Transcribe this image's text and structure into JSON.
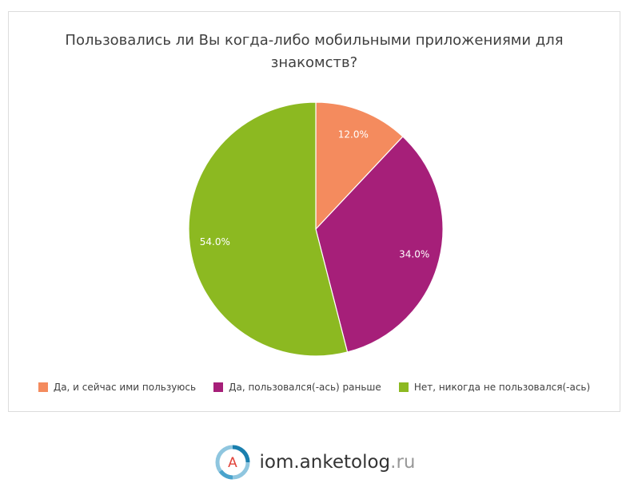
{
  "chart_data": {
    "type": "pie",
    "title": "Пользовались ли Вы когда-либо мобильными приложениями для знакомств?",
    "slices": [
      {
        "label": "Да, и сейчас ими пользуюсь",
        "value": 12.0,
        "display": "12.0%",
        "color": "#f48b5e"
      },
      {
        "label": "Да, пользовался(-ась) раньше",
        "value": 34.0,
        "display": "34.0%",
        "color": "#a61f79"
      },
      {
        "label": "Нет, никогда не пользовался(-ась)",
        "value": 54.0,
        "display": "54.0%",
        "color": "#8cb921"
      }
    ],
    "legend_position": "bottom"
  },
  "footer": {
    "brand_name": "iom.anketolog",
    "brand_tld": ".ru",
    "logo_letter": "A"
  }
}
